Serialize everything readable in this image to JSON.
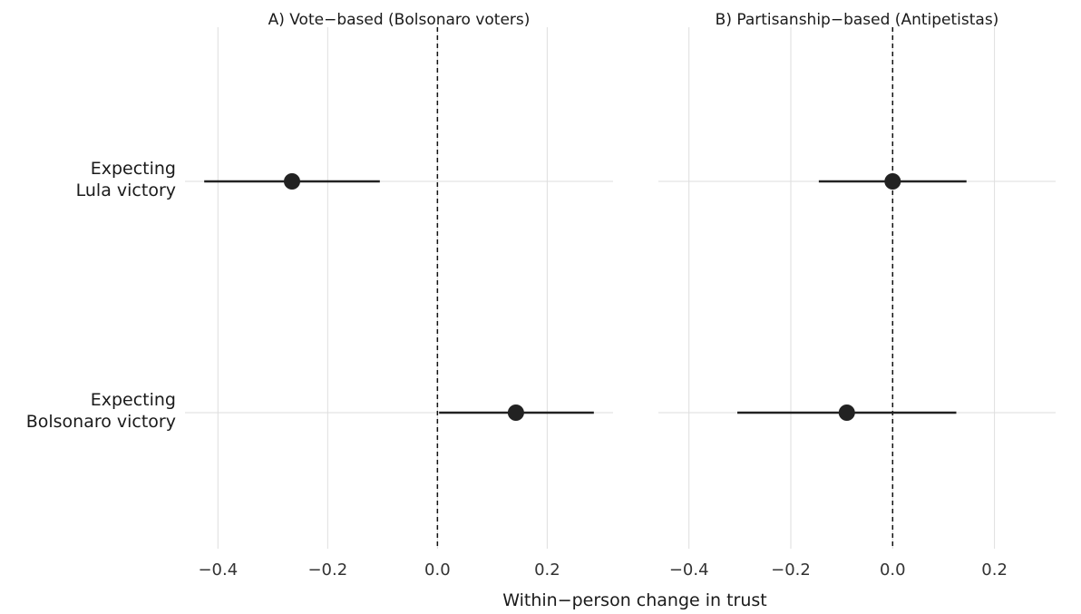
{
  "chart_data": {
    "type": "scatter",
    "xlabel": "Within−person change in trust",
    "ylabel": "",
    "categories": [
      "Expecting Lula victory",
      "Expecting Bolsonaro victory"
    ],
    "category_lines": [
      [
        "Expecting",
        "Lula victory"
      ],
      [
        "Expecting",
        "Bolsonaro victory"
      ]
    ],
    "xlim": [
      -0.46,
      0.32
    ],
    "x_ticks": [
      -0.4,
      -0.2,
      0.0,
      0.2
    ],
    "x_tick_labels": [
      "−0.4",
      "−0.2",
      "0.0",
      "0.2"
    ],
    "reference_line": 0.0,
    "grid": true,
    "colors": {
      "point": "#222222",
      "grid": "#dedede",
      "reference": "#111111"
    },
    "panels": [
      {
        "title": "A) Vote−based (Bolsonaro voters)",
        "series": [
          {
            "category": "Expecting Lula victory",
            "estimate": -0.265,
            "ci_low": -0.425,
            "ci_high": -0.105
          },
          {
            "category": "Expecting Bolsonaro victory",
            "estimate": 0.143,
            "ci_low": 0.003,
            "ci_high": 0.285
          }
        ]
      },
      {
        "title": "B) Partisanship−based (Antipetistas)",
        "series": [
          {
            "category": "Expecting Lula victory",
            "estimate": 0.0,
            "ci_low": -0.145,
            "ci_high": 0.145
          },
          {
            "category": "Expecting Bolsonaro victory",
            "estimate": -0.09,
            "ci_low": -0.305,
            "ci_high": 0.125
          }
        ]
      }
    ]
  }
}
